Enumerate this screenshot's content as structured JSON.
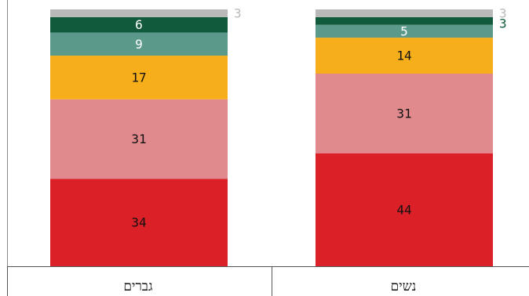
{
  "chart_data": {
    "type": "bar",
    "stacked": true,
    "percent": true,
    "categories": [
      "גברים",
      "נשים"
    ],
    "series": [
      {
        "values": [
          34,
          44
        ],
        "color": "#dc2028",
        "label_color": "#111111"
      },
      {
        "values": [
          31,
          31
        ],
        "color": "#e08a8e",
        "label_color": "#111111"
      },
      {
        "values": [
          17,
          14
        ],
        "color": "#f7ae1b",
        "label_color": "#111111"
      },
      {
        "values": [
          9,
          5
        ],
        "color": "#5b9a8b",
        "label_color": "#ffffff"
      },
      {
        "values": [
          6,
          3
        ],
        "color": "#125a3c",
        "label_color": "#ffffff"
      },
      {
        "values": [
          3,
          3
        ],
        "color": "#b9b9b9",
        "label_color": "#b9b9b9"
      }
    ],
    "ylim": [
      0,
      100
    ],
    "xlabel": "",
    "ylabel": ""
  }
}
